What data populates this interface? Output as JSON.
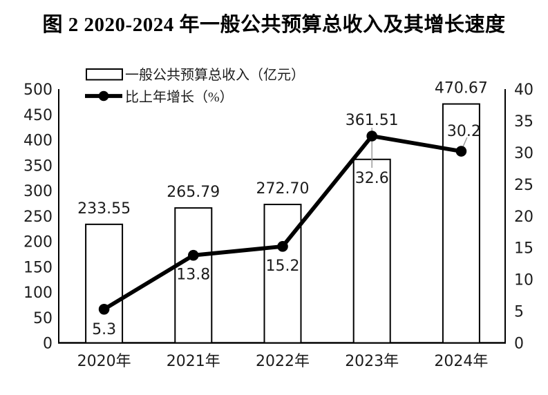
{
  "title": "图 2 2020-2024 年一般公共预算总收入及其增长速度",
  "chart_data": {
    "type": "bar+line",
    "categories": [
      "2020年",
      "2021年",
      "2022年",
      "2023年",
      "2024年"
    ],
    "series": [
      {
        "name": "一般公共预算总收入（亿元）",
        "type": "bar",
        "axis": "left",
        "values": [
          233.55,
          265.79,
          272.7,
          361.51,
          470.67
        ],
        "labels": [
          "233.55",
          "265.79",
          "272.70",
          "361.51",
          "470.67"
        ]
      },
      {
        "name": "比上年增长（%）",
        "type": "line",
        "axis": "right",
        "values": [
          5.3,
          13.8,
          15.2,
          32.6,
          30.2
        ],
        "labels": [
          "5.3",
          "13.8",
          "15.2",
          "32.6",
          "30.2"
        ]
      }
    ],
    "left_axis": {
      "min": 0,
      "max": 500,
      "step": 50
    },
    "right_axis": {
      "min": 0,
      "max": 40,
      "step": 5
    },
    "legend_position": "top-left",
    "grid": false,
    "colors": {
      "bar_fill": "#ffffff",
      "bar_border": "#000000",
      "line": "#000000",
      "text": "#1c1c1c",
      "leader": "#9a9a9a"
    }
  }
}
